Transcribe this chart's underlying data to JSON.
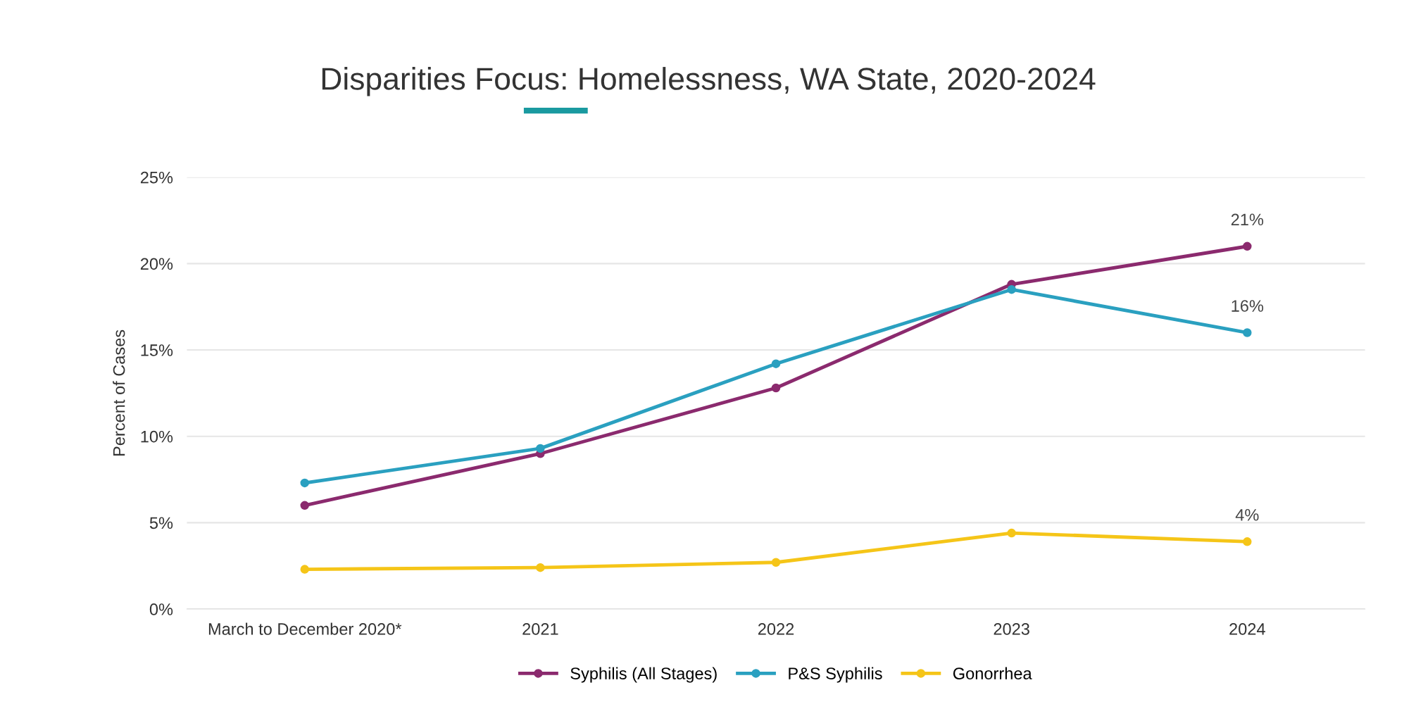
{
  "chart_data": {
    "type": "line",
    "title": "Disparities Focus: Homelessness, WA State, 2020-2024",
    "ylabel": "Percent of Cases",
    "categories": [
      "March to December 2020*",
      "2021",
      "2022",
      "2023",
      "2024"
    ],
    "series": [
      {
        "name": "Syphilis (All Stages)",
        "color": "#8b2a6e",
        "values": [
          6.0,
          9.0,
          12.8,
          18.8,
          21.0
        ],
        "value_labels": [
          null,
          null,
          null,
          null,
          "21%"
        ]
      },
      {
        "name": "P&S Syphilis",
        "color": "#2aa0c0",
        "values": [
          7.3,
          9.3,
          14.2,
          18.5,
          16.0
        ],
        "value_labels": [
          null,
          null,
          null,
          null,
          "16%"
        ]
      },
      {
        "name": "Gonorrhea",
        "color": "#f5c518",
        "values": [
          2.3,
          2.4,
          2.7,
          4.4,
          3.9
        ],
        "value_labels": [
          null,
          null,
          null,
          null,
          "4%"
        ]
      }
    ],
    "ylim": [
      0,
      25
    ],
    "yticks": [
      {
        "value": 0,
        "label": "0%"
      },
      {
        "value": 5,
        "label": "5%"
      },
      {
        "value": 10,
        "label": "10%"
      },
      {
        "value": 15,
        "label": "15%"
      },
      {
        "value": 20,
        "label": "20%"
      },
      {
        "value": 25,
        "label": "25%"
      }
    ],
    "grid": "y",
    "legend": "bottom",
    "marker": "circle",
    "line_style": "solid"
  }
}
